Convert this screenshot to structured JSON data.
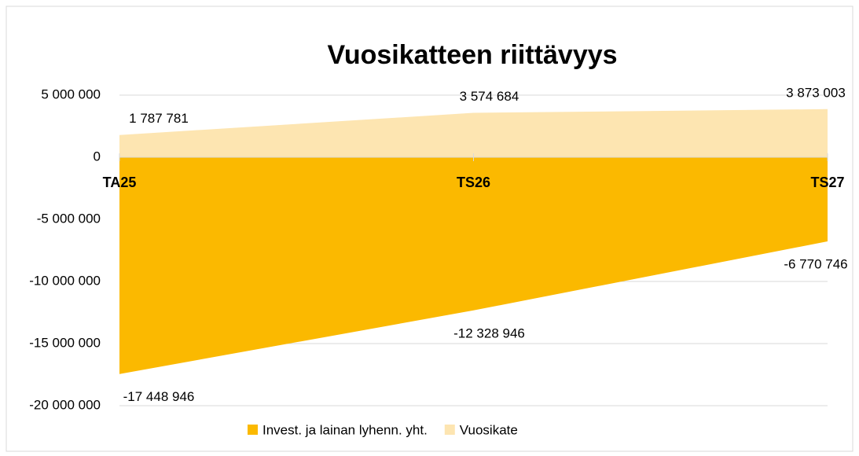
{
  "chart_data": {
    "type": "area",
    "title": "Vuosikatteen riittävyys",
    "categories": [
      "TA25",
      "TS26",
      "TS27"
    ],
    "series": [
      {
        "name": "Invest. ja lainan lyhenn. yht.",
        "color": "#fbb900",
        "values": [
          -17448946,
          -12328946,
          -6770746
        ],
        "value_labels": [
          "-17 448 946",
          "-12 328 946",
          "-6 770 746"
        ]
      },
      {
        "name": "Vuosikate",
        "color": "#fde5b1",
        "values": [
          1787781,
          3574684,
          3873003
        ],
        "value_labels": [
          "1 787 781",
          "3 574 684",
          "3 873 003"
        ]
      }
    ],
    "ylim": [
      -20000000,
      5000000
    ],
    "yticks": [
      {
        "value": 5000000,
        "label": "5 000 000"
      },
      0,
      {
        "value": -5000000,
        "label": "-5 000 000"
      },
      {
        "value": -10000000,
        "label": "-10 000 000"
      },
      {
        "value": -15000000,
        "label": "-15 000 000"
      },
      {
        "value": -20000000,
        "label": "-20 000 000"
      }
    ],
    "grid": true,
    "legend": "bottom"
  }
}
